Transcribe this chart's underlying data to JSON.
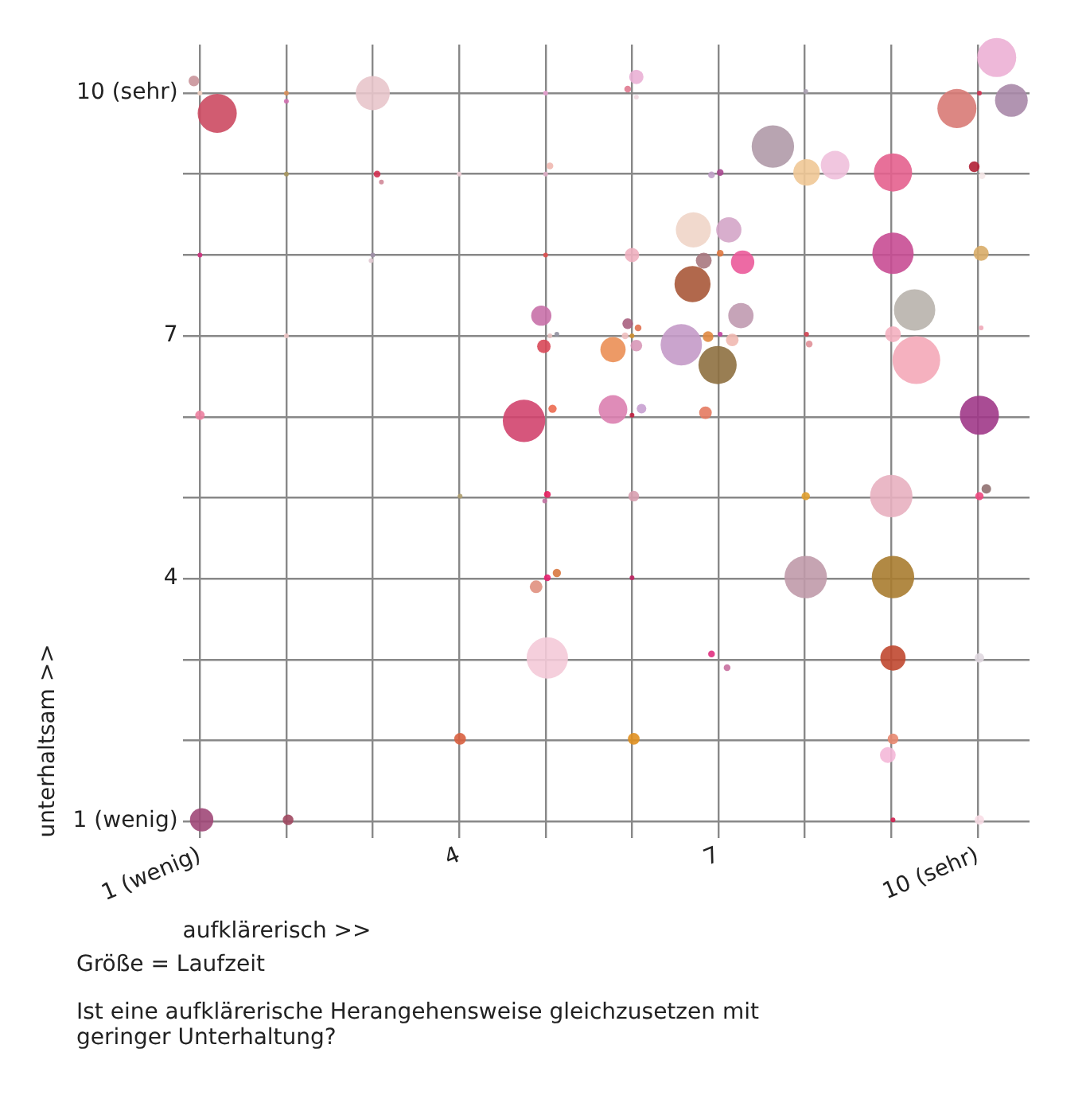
{
  "chart_data": {
    "type": "bubble",
    "title": "Ist eine aufklärerische Herangehensweise gleichzusetzen mit geringer Unterhaltung?",
    "xlabel": "aufklärerisch >>",
    "ylabel": "unterhaltsam >>",
    "annotations": [
      "Größe = Laufzeit"
    ],
    "x": [
      0.93,
      1.0,
      1.2,
      2.0,
      2.0,
      3.0,
      5.0,
      6.05,
      5.95,
      6.05,
      2.0,
      3.05,
      3.1,
      4.0,
      5.0,
      5.05,
      1.0,
      3.0,
      2.98,
      5.0,
      6.0,
      2.0,
      4.95,
      5.05,
      5.13,
      4.98,
      5.95,
      6.07,
      5.92,
      6.0,
      5.78,
      6.05,
      1.0,
      4.75,
      5.08,
      5.78,
      6.0,
      6.11,
      10.22,
      10.02,
      10.39,
      9.76,
      8.01,
      7.63,
      6.92,
      7.02,
      8.02,
      8.35,
      9.02,
      9.96,
      10.05,
      6.71,
      7.12,
      7.02,
      6.83,
      7.28,
      9.02,
      10.04,
      6.7,
      7.26,
      9.27,
      10.04,
      6.57,
      6.88,
      7.02,
      7.16,
      6.99,
      8.02,
      8.05,
      9.02,
      9.29,
      6.85,
      10.02,
      4.01,
      5.02,
      4.99,
      6.02,
      5.02,
      5.13,
      4.89,
      6.0,
      5.02,
      4.01,
      6.02,
      1.02,
      2.02,
      8.01,
      9.0,
      10.02,
      10.1,
      8.01,
      9.02,
      6.92,
      7.1,
      9.02,
      10.02,
      9.02,
      8.96,
      9.02,
      10.02
    ],
    "values": [
      10.15,
      10.0,
      9.75,
      10.0,
      9.9,
      10.0,
      10.0,
      10.2,
      10.05,
      9.95,
      9.0,
      9.0,
      8.9,
      9.0,
      9.0,
      9.1,
      8.0,
      8.0,
      7.93,
      8.0,
      8.0,
      7.0,
      7.25,
      7.0,
      7.02,
      6.87,
      7.15,
      7.1,
      7.0,
      7.0,
      6.83,
      6.88,
      6.02,
      5.95,
      6.1,
      6.09,
      6.02,
      6.1,
      10.44,
      10.0,
      9.91,
      9.81,
      10.02,
      9.34,
      8.99,
      9.02,
      9.02,
      9.11,
      9.02,
      9.09,
      8.98,
      8.31,
      8.31,
      8.02,
      7.93,
      7.91,
      8.02,
      8.02,
      7.64,
      7.25,
      7.32,
      7.1,
      6.89,
      6.99,
      7.02,
      6.95,
      6.64,
      7.02,
      6.9,
      7.02,
      6.7,
      6.05,
      6.02,
      5.02,
      5.04,
      4.96,
      5.02,
      4.01,
      4.07,
      3.9,
      4.01,
      3.02,
      2.02,
      2.02,
      1.02,
      1.02,
      5.02,
      5.02,
      5.02,
      5.11,
      4.02,
      4.02,
      3.07,
      2.9,
      3.02,
      3.02,
      2.02,
      1.82,
      1.02,
      1.02
    ],
    "sizes": [
      0.05,
      0.01,
      0.67,
      0.01,
      0.01,
      0.51,
      0.01,
      0.09,
      0.02,
      0.01,
      0.01,
      0.02,
      0.01,
      0.01,
      0.01,
      0.02,
      0.01,
      0.01,
      0.01,
      0.01,
      0.09,
      0.01,
      0.18,
      0.01,
      0.01,
      0.08,
      0.05,
      0.02,
      0.02,
      0.01,
      0.28,
      0.06,
      0.04,
      0.79,
      0.03,
      0.36,
      0.01,
      0.04,
      0.67,
      0.01,
      0.47,
      0.67,
      0.01,
      0.79,
      0.02,
      0.02,
      0.31,
      0.36,
      0.64,
      0.05,
      0.02,
      0.54,
      0.28,
      0.02,
      0.11,
      0.24,
      0.75,
      0.1,
      0.57,
      0.28,
      0.75,
      0.01,
      0.75,
      0.05,
      0.01,
      0.07,
      0.64,
      0.01,
      0.02,
      0.11,
      1,
      0.07,
      0.67,
      0.01,
      0.02,
      0.01,
      0.05,
      0.02,
      0.03,
      0.07,
      0.01,
      0.75,
      0.06,
      0.06,
      0.24,
      0.05,
      0.03,
      0.79,
      0.03,
      0.04,
      0.79,
      0.79,
      0.02,
      0.02,
      0.28,
      0.04,
      0.05,
      0.11,
      0.01,
      0.04
    ],
    "colors": [
      "#c9949a",
      "#f5d5c5",
      "#cc4a62",
      "#d9905a",
      "#d070b0",
      "#e8c5cb",
      "#e8a0d0",
      "#eab0d5",
      "#e07a90",
      "#f0d8e0",
      "#a89860",
      "#d03050",
      "#d08898",
      "#f0d0d8",
      "#e0b0c8",
      "#f0b8b0",
      "#d03080",
      "#a090a8",
      "#e0c8d0",
      "#e05050",
      "#f0b0c0",
      "#f0c8c8",
      "#c870a8",
      "#e8c0c0",
      "#9090a0",
      "#d84858",
      "#a86080",
      "#e07050",
      "#f0c0c0",
      "#d09030",
      "#eb8f55",
      "#d898b8",
      "#ec7fa0",
      "#d2446e",
      "#ec6a50",
      "#dc80b0",
      "#c02040",
      "#c8a0d0",
      "#ecb0d5",
      "#d03050",
      "#a888a8",
      "#d87a75",
      "#a8a0b0",
      "#b09aa8",
      "#c0a0c8",
      "#a84890",
      "#efc896",
      "#f0c0dc",
      "#e4608e",
      "#b02035",
      "#f5e8e8",
      "#efd5c8",
      "#d4a5c8",
      "#e07840",
      "#a87880",
      "#eb5a9a",
      "#c84c94",
      "#d8ac68",
      "#a85838",
      "#c09ab0",
      "#b8b2ac",
      "#f0a8b8",
      "#c49ac8",
      "#e08840",
      "#c040a0",
      "#f0b8b0",
      "#8e7040",
      "#d04050",
      "#e09098",
      "#f4b0c0",
      "#f4a8b8",
      "#e47a60",
      "#a03888",
      "#b0a070",
      "#e82060",
      "#c070a0",
      "#d8a0b0",
      "#e82070",
      "#d87840",
      "#e09080",
      "#c02060",
      "#f4cad8",
      "#d86040",
      "#e09020",
      "#a04878",
      "#a04860",
      "#e0a030",
      "#e8b0c0",
      "#f04880",
      "#907070",
      "#c09aaa",
      "#a87c30",
      "#e03080",
      "#c870a0",
      "#c04830",
      "#e0d8e0",
      "#e88870",
      "#f4b8d8",
      "#d02050",
      "#f8dde5"
    ],
    "xlim": [
      0.8,
      10.6
    ],
    "ylim": [
      0.8,
      10.6
    ],
    "xticks": [
      {
        "value": 1,
        "label": "1 (wenig)"
      },
      {
        "value": 2,
        "label": null
      },
      {
        "value": 3,
        "label": null
      },
      4,
      {
        "value": 5,
        "label": null
      },
      {
        "value": 6,
        "label": null
      },
      7,
      {
        "value": 8,
        "label": null
      },
      {
        "value": 9,
        "label": null
      },
      {
        "value": 10,
        "label": "10 (sehr)"
      }
    ],
    "yticks": [
      {
        "value": 1,
        "label": "1 (wenig)"
      },
      {
        "value": 2,
        "label": null
      },
      {
        "value": 3,
        "label": null
      },
      4,
      {
        "value": 5,
        "label": null
      },
      {
        "value": 6,
        "label": null
      },
      7,
      {
        "value": 8,
        "label": null
      },
      {
        "value": 9,
        "label": null
      },
      {
        "value": 10,
        "label": "10 (sehr)"
      }
    ],
    "grid": true,
    "legend": false
  }
}
